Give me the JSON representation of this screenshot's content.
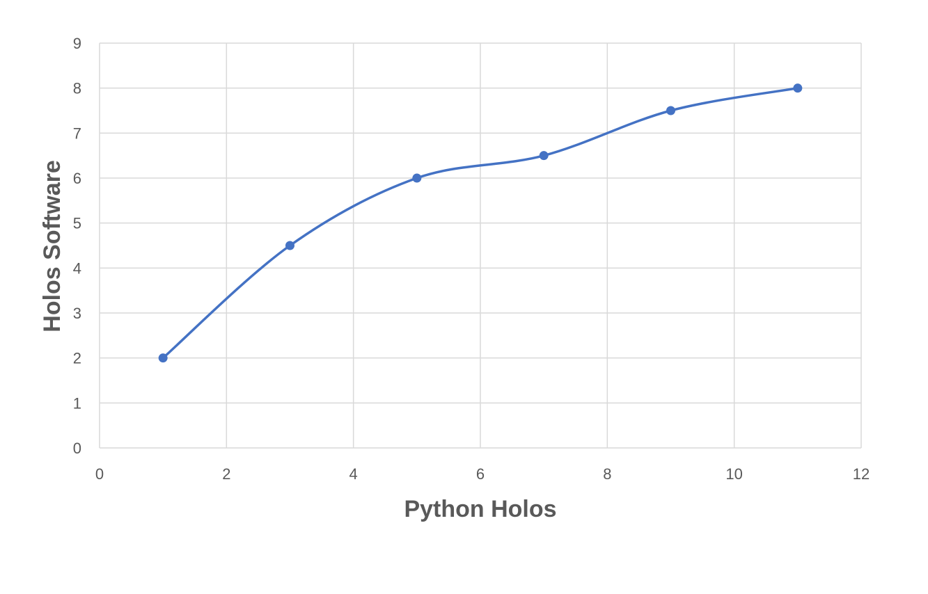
{
  "chart_data": {
    "type": "scatter",
    "xlabel": "Python Holos",
    "ylabel": "Holos Software",
    "xlim": [
      0,
      12
    ],
    "ylim": [
      0,
      9
    ],
    "x_ticks": [
      0,
      2,
      4,
      6,
      8,
      10,
      12
    ],
    "y_ticks": [
      0,
      1,
      2,
      3,
      4,
      5,
      6,
      7,
      8,
      9
    ],
    "grid": true,
    "smooth_line": true,
    "markers": true,
    "series": [
      {
        "x": [
          1,
          3,
          5,
          7,
          9,
          11
        ],
        "y": [
          2,
          4.5,
          6,
          6.5,
          7.5,
          8
        ],
        "color": "#4472c4"
      }
    ]
  }
}
